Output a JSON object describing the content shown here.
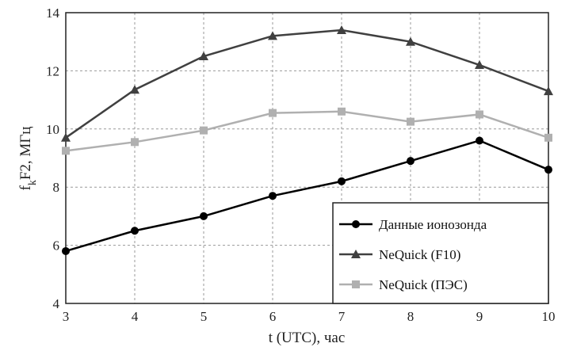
{
  "chart_data": {
    "type": "line",
    "title": "",
    "xlabel": "t (UTC), час",
    "ylabel": {
      "main": "f",
      "sub": "k",
      "rest": "F2, МГц"
    },
    "xlim": [
      3,
      10
    ],
    "ylim": [
      4,
      14
    ],
    "xticks": [
      3,
      4,
      5,
      6,
      7,
      8,
      9,
      10
    ],
    "yticks": [
      4,
      6,
      8,
      10,
      12,
      14
    ],
    "grid": true,
    "legend_position": "bottom-right",
    "x": [
      3,
      4,
      5,
      6,
      7,
      8,
      9,
      10
    ],
    "series": [
      {
        "name": "Данные ионозонда",
        "marker": "circle",
        "color": "#000000",
        "values": [
          5.8,
          6.5,
          7.0,
          7.7,
          8.2,
          8.9,
          9.6,
          8.6
        ]
      },
      {
        "name": "NeQuick (F10)",
        "marker": "triangle",
        "color": "#404040",
        "values": [
          9.7,
          11.35,
          12.5,
          13.2,
          13.4,
          13.0,
          12.2,
          11.3
        ]
      },
      {
        "name": "NeQuick (ПЭС)",
        "marker": "square",
        "color": "#b0b0b0",
        "values": [
          9.25,
          9.55,
          9.95,
          10.55,
          10.6,
          10.25,
          10.5,
          9.7
        ]
      }
    ]
  }
}
